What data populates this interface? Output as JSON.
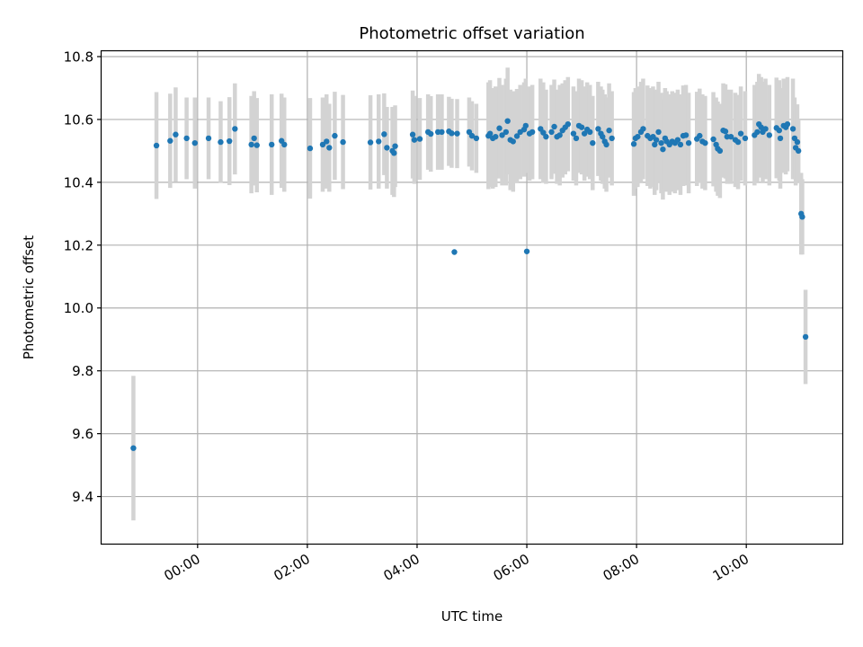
{
  "chart_data": {
    "type": "scatter",
    "title": "Photometric offset variation",
    "xlabel": "UTC time",
    "ylabel": "Photometric offset",
    "x_unit": "hours (UTC)",
    "xlim": [
      -1.75,
      11.75
    ],
    "ylim": [
      9.25,
      10.82
    ],
    "x_ticks": [
      {
        "value": 0,
        "label": "00:00"
      },
      {
        "value": 2,
        "label": "02:00"
      },
      {
        "value": 4,
        "label": "04:00"
      },
      {
        "value": 6,
        "label": "06:00"
      },
      {
        "value": 8,
        "label": "08:00"
      },
      {
        "value": 10,
        "label": "10:00"
      }
    ],
    "y_ticks": [
      {
        "value": 9.4,
        "label": "9.4"
      },
      {
        "value": 9.6,
        "label": "9.6"
      },
      {
        "value": 9.8,
        "label": "9.8"
      },
      {
        "value": 10.0,
        "label": "10.0"
      },
      {
        "value": 10.2,
        "label": "10.2"
      },
      {
        "value": 10.4,
        "label": "10.4"
      },
      {
        "value": 10.6,
        "label": "10.6"
      },
      {
        "value": 10.8,
        "label": "10.8"
      }
    ],
    "grid": true,
    "colors": {
      "points": "#1f77b4",
      "error_bars": "#d3d3d3",
      "grid": "#b0b0b0"
    },
    "series": [
      {
        "points": [
          [
            -1.17,
            9.554,
            0.23
          ],
          [
            -0.75,
            10.517,
            0.17
          ],
          [
            -0.5,
            10.532,
            0.15
          ],
          [
            -0.4,
            10.552,
            0.15
          ],
          [
            -0.2,
            10.54,
            0.13
          ],
          [
            -0.05,
            10.525,
            0.145
          ],
          [
            0.2,
            10.54,
            0.13
          ],
          [
            0.42,
            10.528,
            0.13
          ],
          [
            0.58,
            10.531,
            0.14
          ],
          [
            0.68,
            10.57,
            0.145
          ],
          [
            0.98,
            10.52,
            0.155
          ],
          [
            1.03,
            10.54,
            0.15
          ],
          [
            1.08,
            10.518,
            0.15
          ],
          [
            1.35,
            10.52,
            0.16
          ],
          [
            1.53,
            10.532,
            0.15
          ],
          [
            1.58,
            10.52,
            0.15
          ],
          [
            2.05,
            10.508,
            0.16
          ],
          [
            2.28,
            10.52,
            0.15
          ],
          [
            2.35,
            10.53,
            0.15
          ],
          [
            2.4,
            10.51,
            0.14
          ],
          [
            2.5,
            10.548,
            0.14
          ],
          [
            2.65,
            10.528,
            0.15
          ],
          [
            3.15,
            10.527,
            0.15
          ],
          [
            3.3,
            10.53,
            0.15
          ],
          [
            3.4,
            10.553,
            0.13
          ],
          [
            3.45,
            10.51,
            0.13
          ],
          [
            3.55,
            10.5,
            0.14
          ],
          [
            3.58,
            10.493,
            0.14
          ],
          [
            3.6,
            10.515,
            0.13
          ],
          [
            3.92,
            10.552,
            0.14
          ],
          [
            3.95,
            10.535,
            0.14
          ],
          [
            4.05,
            10.538,
            0.13
          ],
          [
            4.2,
            10.56,
            0.12
          ],
          [
            4.25,
            10.554,
            0.12
          ],
          [
            4.38,
            10.56,
            0.12
          ],
          [
            4.45,
            10.56,
            0.12
          ],
          [
            4.58,
            10.562,
            0.11
          ],
          [
            4.63,
            10.556,
            0.11
          ],
          [
            4.73,
            10.555,
            0.11
          ],
          [
            4.68,
            10.178,
            0.0
          ],
          [
            4.95,
            10.56,
            0.11
          ],
          [
            5.0,
            10.548,
            0.11
          ],
          [
            5.08,
            10.54,
            0.11
          ],
          [
            5.3,
            10.548,
            0.17
          ],
          [
            5.33,
            10.555,
            0.17
          ],
          [
            5.38,
            10.54,
            0.16
          ],
          [
            5.43,
            10.545,
            0.16
          ],
          [
            5.5,
            10.572,
            0.16
          ],
          [
            5.55,
            10.55,
            0.16
          ],
          [
            5.62,
            10.56,
            0.17
          ],
          [
            5.65,
            10.595,
            0.17
          ],
          [
            5.7,
            10.535,
            0.16
          ],
          [
            5.75,
            10.53,
            0.16
          ],
          [
            5.82,
            10.547,
            0.15
          ],
          [
            5.88,
            10.56,
            0.15
          ],
          [
            5.95,
            10.568,
            0.15
          ],
          [
            5.98,
            10.58,
            0.15
          ],
          [
            6.05,
            10.555,
            0.15
          ],
          [
            6.1,
            10.56,
            0.15
          ],
          [
            6.0,
            10.18,
            0.0
          ],
          [
            6.25,
            10.57,
            0.16
          ],
          [
            6.3,
            10.558,
            0.16
          ],
          [
            6.35,
            10.545,
            0.15
          ],
          [
            6.45,
            10.56,
            0.15
          ],
          [
            6.5,
            10.577,
            0.15
          ],
          [
            6.55,
            10.545,
            0.15
          ],
          [
            6.6,
            10.55,
            0.16
          ],
          [
            6.65,
            10.565,
            0.15
          ],
          [
            6.7,
            10.575,
            0.15
          ],
          [
            6.75,
            10.585,
            0.15
          ],
          [
            6.85,
            10.555,
            0.15
          ],
          [
            6.9,
            10.54,
            0.15
          ],
          [
            6.95,
            10.58,
            0.15
          ],
          [
            7.0,
            10.575,
            0.15
          ],
          [
            7.05,
            10.555,
            0.15
          ],
          [
            7.1,
            10.568,
            0.15
          ],
          [
            7.15,
            10.56,
            0.15
          ],
          [
            7.2,
            10.525,
            0.15
          ],
          [
            7.3,
            10.57,
            0.15
          ],
          [
            7.35,
            10.555,
            0.15
          ],
          [
            7.38,
            10.545,
            0.15
          ],
          [
            7.42,
            10.53,
            0.15
          ],
          [
            7.45,
            10.52,
            0.15
          ],
          [
            7.5,
            10.565,
            0.15
          ],
          [
            7.55,
            10.54,
            0.15
          ],
          [
            7.95,
            10.522,
            0.165
          ],
          [
            7.98,
            10.54,
            0.16
          ],
          [
            8.02,
            10.545,
            0.16
          ],
          [
            8.08,
            10.56,
            0.16
          ],
          [
            8.12,
            10.57,
            0.16
          ],
          [
            8.2,
            10.548,
            0.16
          ],
          [
            8.25,
            10.54,
            0.16
          ],
          [
            8.3,
            10.545,
            0.16
          ],
          [
            8.33,
            10.52,
            0.16
          ],
          [
            8.36,
            10.535,
            0.16
          ],
          [
            8.4,
            10.56,
            0.16
          ],
          [
            8.45,
            10.525,
            0.16
          ],
          [
            8.48,
            10.505,
            0.16
          ],
          [
            8.52,
            10.54,
            0.16
          ],
          [
            8.55,
            10.53,
            0.16
          ],
          [
            8.6,
            10.52,
            0.16
          ],
          [
            8.65,
            10.53,
            0.16
          ],
          [
            8.7,
            10.525,
            0.16
          ],
          [
            8.75,
            10.535,
            0.16
          ],
          [
            8.8,
            10.52,
            0.16
          ],
          [
            8.85,
            10.548,
            0.16
          ],
          [
            8.9,
            10.55,
            0.16
          ],
          [
            8.95,
            10.525,
            0.16
          ],
          [
            9.1,
            10.538,
            0.15
          ],
          [
            9.15,
            10.548,
            0.15
          ],
          [
            9.2,
            10.53,
            0.15
          ],
          [
            9.25,
            10.525,
            0.15
          ],
          [
            9.4,
            10.537,
            0.15
          ],
          [
            9.45,
            10.52,
            0.15
          ],
          [
            9.48,
            10.507,
            0.15
          ],
          [
            9.52,
            10.5,
            0.15
          ],
          [
            9.58,
            10.565,
            0.15
          ],
          [
            9.62,
            10.562,
            0.15
          ],
          [
            9.65,
            10.545,
            0.15
          ],
          [
            9.72,
            10.545,
            0.15
          ],
          [
            9.8,
            10.535,
            0.15
          ],
          [
            9.85,
            10.528,
            0.15
          ],
          [
            9.9,
            10.555,
            0.15
          ],
          [
            9.98,
            10.54,
            0.15
          ],
          [
            10.15,
            10.55,
            0.16
          ],
          [
            10.2,
            10.56,
            0.16
          ],
          [
            10.23,
            10.585,
            0.16
          ],
          [
            10.27,
            10.575,
            0.16
          ],
          [
            10.3,
            10.56,
            0.16
          ],
          [
            10.35,
            10.57,
            0.16
          ],
          [
            10.42,
            10.55,
            0.16
          ],
          [
            10.55,
            10.573,
            0.16
          ],
          [
            10.6,
            10.565,
            0.16
          ],
          [
            10.62,
            10.54,
            0.16
          ],
          [
            10.68,
            10.58,
            0.15
          ],
          [
            10.72,
            10.575,
            0.15
          ],
          [
            10.75,
            10.585,
            0.15
          ],
          [
            10.85,
            10.57,
            0.16
          ],
          [
            10.88,
            10.54,
            0.13
          ],
          [
            10.9,
            10.51,
            0.12
          ],
          [
            10.93,
            10.528,
            0.12
          ],
          [
            10.95,
            10.5,
            0.1
          ],
          [
            11.0,
            10.3,
            0.13
          ],
          [
            11.02,
            10.29,
            0.12
          ],
          [
            11.08,
            9.908,
            0.15
          ]
        ]
      }
    ]
  }
}
